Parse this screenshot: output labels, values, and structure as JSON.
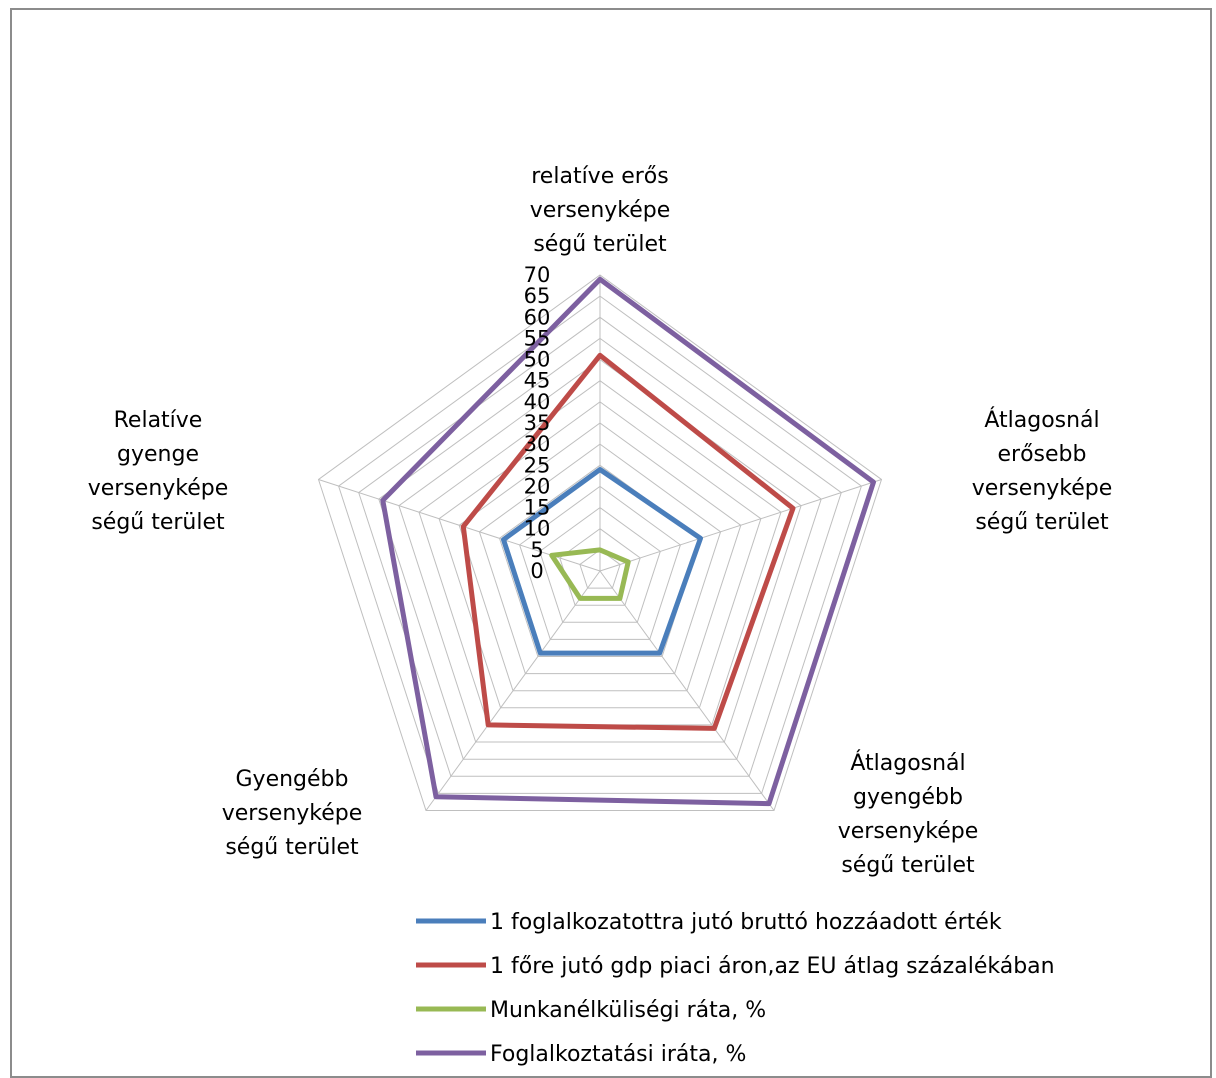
{
  "chart_data": {
    "type": "radar",
    "title": "",
    "categories": [
      [
        "relatíve erős",
        "versenyképe",
        "ségű terület"
      ],
      [
        "Átlagosnál",
        "erősebb",
        "versenyképe",
        "ségű terület"
      ],
      [
        "Átlagosnál",
        "gyengébb",
        "versenyképe",
        "ségű terület"
      ],
      [
        "Gyengébb",
        "versenyképe",
        "ségű terület"
      ],
      [
        "Relatíve",
        "gyenge",
        "versenyképe",
        "ségű terület"
      ]
    ],
    "axis": {
      "min": 0,
      "max": 70,
      "step": 5,
      "ticks": [
        "0",
        "5",
        "10",
        "15",
        "20",
        "25",
        "30",
        "35",
        "40",
        "45",
        "50",
        "55",
        "60",
        "65",
        "70"
      ]
    },
    "grid": true,
    "legend_position": "bottom",
    "series": [
      {
        "name": "1 foglalkozatottra jutó bruttó hozzáadott érték",
        "color": "#4a7ebb",
        "values": [
          24,
          25,
          24,
          24,
          24
        ]
      },
      {
        "name": "1 főre jutó gdp piaci áron,az EU átlag százalékában",
        "color": "#be4b48",
        "values": [
          51,
          48,
          46,
          45,
          34
        ]
      },
      {
        "name": "Munkanélküliségi ráta, %",
        "color": "#98b954",
        "values": [
          5,
          7,
          8,
          8,
          12
        ]
      },
      {
        "name": "Foglalkoztatási iráta, %",
        "color": "#7d60a0",
        "values": [
          69,
          68,
          68,
          66,
          54
        ]
      }
    ]
  }
}
